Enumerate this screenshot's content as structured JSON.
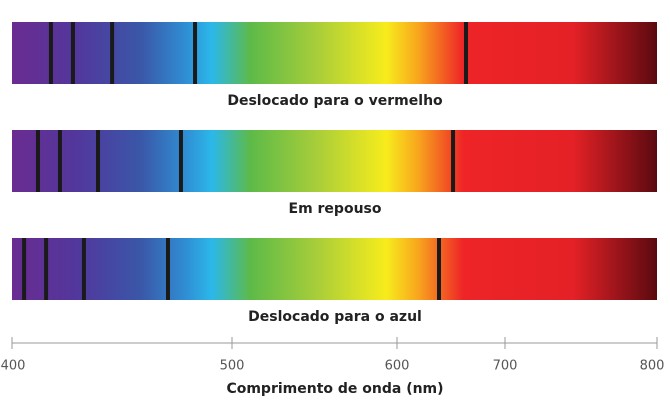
{
  "spectra": [
    {
      "label": "Deslocado para o vermelho",
      "lines": [
        417.7,
        427.7,
        445.5,
        483.2,
        663.9
      ]
    },
    {
      "label": "Em repouso",
      "lines": [
        411.8,
        421.8,
        439.1,
        476.8,
        651.9
      ]
    },
    {
      "label": "Deslocado para o azul",
      "lines": [
        405.5,
        415.5,
        432.7,
        470.9,
        638.9
      ]
    }
  ],
  "axis": {
    "ticks": [
      400,
      500,
      600,
      700,
      800
    ],
    "title": "Comprimento de onda (nm)"
  }
}
